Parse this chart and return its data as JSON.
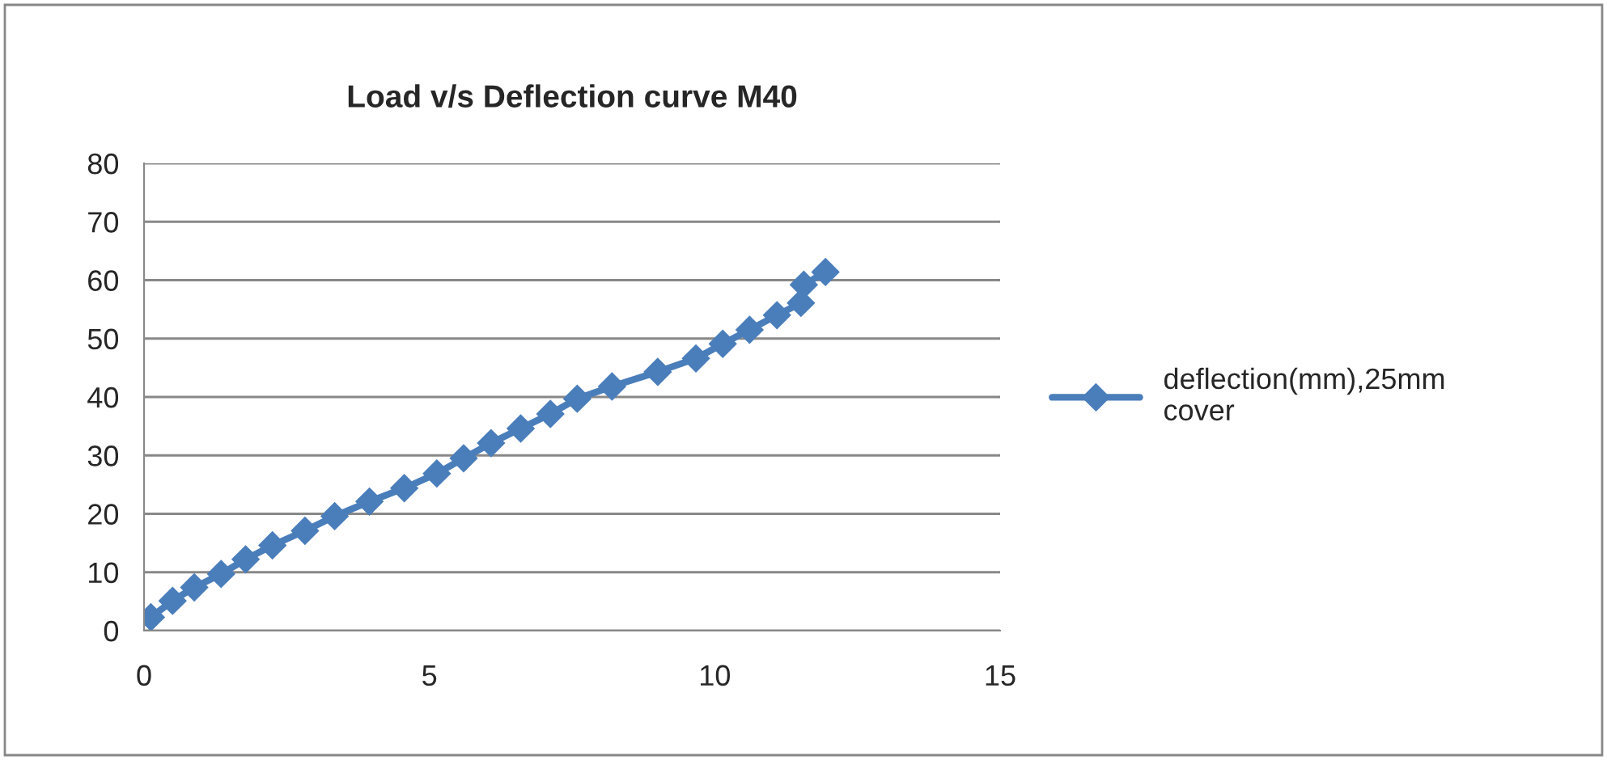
{
  "chart_data": {
    "type": "line",
    "title": "Load v/s Deflection curve M40",
    "series": [
      {
        "name": "deflection(mm),25mm cover",
        "color": "#4a7ebb",
        "x": [
          0.12,
          0.5,
          0.88,
          1.35,
          1.78,
          2.25,
          2.82,
          3.34,
          3.95,
          4.56,
          5.13,
          5.6,
          6.08,
          6.6,
          7.12,
          7.59,
          8.2,
          9.0,
          9.67,
          10.14,
          10.61,
          11.09,
          11.51,
          11.56,
          11.94
        ],
        "values": [
          2.3,
          5.1,
          7.4,
          9.7,
          12.2,
          14.6,
          17.1,
          19.6,
          22.1,
          24.4,
          26.9,
          29.5,
          32.1,
          34.6,
          37.1,
          39.7,
          41.8,
          44.3,
          46.6,
          49.1,
          51.5,
          54,
          56.1,
          59.2,
          61.4
        ]
      }
    ],
    "xlim": [
      0,
      15
    ],
    "xticks": [
      0,
      5,
      10,
      15
    ],
    "ylim": [
      0,
      80
    ],
    "yticks": [
      0,
      10,
      20,
      30,
      40,
      50,
      60,
      70,
      80
    ],
    "grid": "y",
    "legend": "right",
    "marker": "diamond",
    "line_style": "solid"
  }
}
